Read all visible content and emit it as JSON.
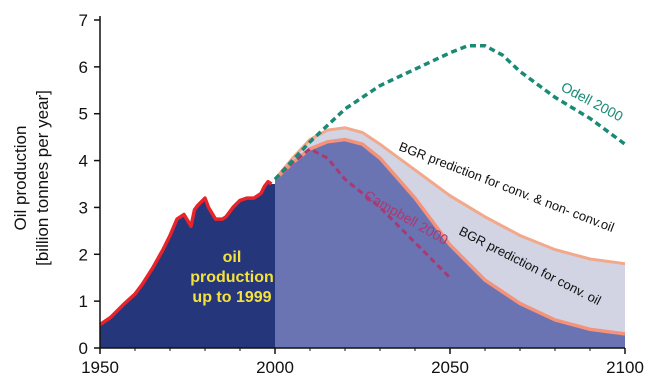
{
  "chart_data": {
    "type": "area",
    "ylabel_line1": "Oil production",
    "ylabel_line2": "[billion tonnes per year]",
    "xlim": [
      1950,
      2100
    ],
    "ylim": [
      0,
      7
    ],
    "x_ticks": [
      "1950",
      "2000",
      "2050",
      "2100"
    ],
    "y_ticks": [
      "0",
      "1",
      "2",
      "3",
      "4",
      "5",
      "6",
      "7"
    ],
    "historical_label": [
      "oil",
      "production",
      "up to 1999"
    ],
    "series": [
      {
        "name": "oil production up to 1999",
        "color": "#26367a",
        "line_color": "#e8232a",
        "x": [
          1950,
          1953,
          1955,
          1957,
          1960,
          1962,
          1965,
          1968,
          1970,
          1972,
          1974,
          1976,
          1977,
          1978,
          1980,
          1981,
          1983,
          1985,
          1986,
          1988,
          1990,
          1992,
          1994,
          1996,
          1997,
          1998,
          1999
        ],
        "y": [
          0.5,
          0.65,
          0.8,
          0.95,
          1.15,
          1.35,
          1.7,
          2.1,
          2.4,
          2.75,
          2.85,
          2.6,
          2.95,
          3.05,
          3.2,
          3.0,
          2.75,
          2.75,
          2.8,
          3.0,
          3.15,
          3.2,
          3.2,
          3.3,
          3.45,
          3.55,
          3.5
        ]
      },
      {
        "name": "BGR prediction for conv. & non- conv.oil",
        "color": "#d2d4e4",
        "line_color": "#f2a88a",
        "x": [
          2000,
          2005,
          2010,
          2015,
          2020,
          2025,
          2030,
          2040,
          2050,
          2060,
          2070,
          2080,
          2090,
          2100
        ],
        "y": [
          3.6,
          4.05,
          4.45,
          4.65,
          4.7,
          4.6,
          4.35,
          3.8,
          3.25,
          2.8,
          2.4,
          2.1,
          1.9,
          1.8
        ]
      },
      {
        "name": "BGR prediction for conv. oil",
        "color": "#6b74b3",
        "line_color": "#f4937a",
        "x": [
          2000,
          2005,
          2010,
          2015,
          2020,
          2025,
          2030,
          2040,
          2050,
          2060,
          2070,
          2080,
          2090,
          2100
        ],
        "y": [
          3.6,
          3.95,
          4.25,
          4.4,
          4.45,
          4.35,
          4.05,
          3.2,
          2.2,
          1.45,
          0.95,
          0.6,
          0.4,
          0.3
        ]
      },
      {
        "name": "Odell 2000",
        "color": "#1a8a77",
        "x": [
          2000,
          2010,
          2020,
          2030,
          2040,
          2050,
          2055,
          2060,
          2065,
          2070,
          2080,
          2090,
          2100
        ],
        "y": [
          3.6,
          4.4,
          5.1,
          5.6,
          5.95,
          6.3,
          6.45,
          6.45,
          6.25,
          5.9,
          5.35,
          4.9,
          4.35
        ]
      },
      {
        "name": "Campbell 2000",
        "color": "#a83a73",
        "x": [
          2000,
          2005,
          2010,
          2015,
          2020,
          2030,
          2040,
          2050
        ],
        "y": [
          3.6,
          3.95,
          4.25,
          4.05,
          3.6,
          3.0,
          2.25,
          1.5
        ]
      }
    ]
  }
}
